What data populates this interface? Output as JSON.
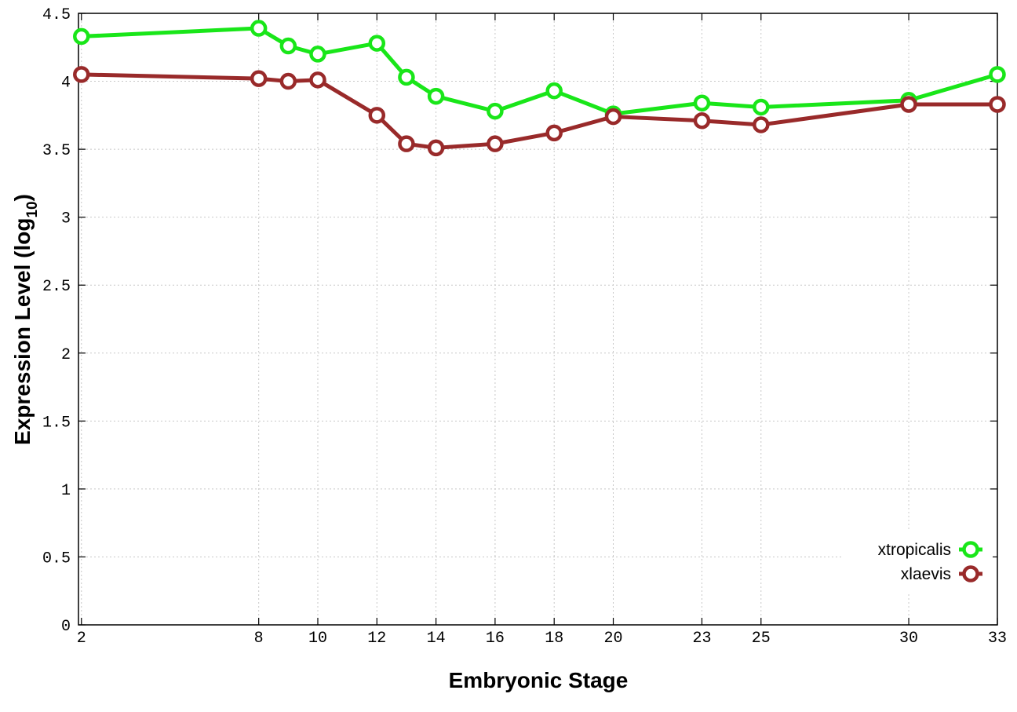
{
  "chart_data": {
    "type": "line",
    "xlabel": "Embryonic Stage",
    "ylabel_main": "Expression Level (log",
    "ylabel_sub": "10",
    "ylabel_close": ")",
    "xlim": [
      1.9,
      33
    ],
    "ylim": [
      0,
      4.5
    ],
    "x_ticks": [
      2,
      8,
      10,
      12,
      14,
      16,
      18,
      20,
      23,
      25,
      30,
      33
    ],
    "x_tick_labels": [
      "2",
      "8",
      "10",
      "12",
      "14",
      "16",
      "18",
      "20",
      "23",
      "25",
      "30",
      "33"
    ],
    "y_ticks": [
      0,
      0.5,
      1,
      1.5,
      2,
      2.5,
      3,
      3.5,
      4,
      4.5
    ],
    "y_tick_labels": [
      "0",
      "0.5",
      "1",
      "1.5",
      "2",
      "2.5",
      "3",
      "3.5",
      "4",
      "4.5"
    ],
    "grid": true,
    "legend_position": "bottom-right",
    "x": [
      2,
      8,
      9,
      10,
      12,
      13,
      14,
      16,
      18,
      20,
      23,
      25,
      30,
      33
    ],
    "series": [
      {
        "name": "xtropicalis",
        "color": "#19e619",
        "values": [
          4.33,
          4.39,
          4.26,
          4.2,
          4.28,
          4.03,
          3.89,
          3.78,
          3.93,
          3.76,
          3.84,
          3.81,
          3.86,
          4.05
        ]
      },
      {
        "name": "xlaevis",
        "color": "#992a2a",
        "values": [
          4.05,
          4.02,
          4.0,
          4.01,
          3.75,
          3.54,
          3.51,
          3.54,
          3.62,
          3.74,
          3.71,
          3.68,
          3.83,
          3.83
        ]
      }
    ]
  }
}
